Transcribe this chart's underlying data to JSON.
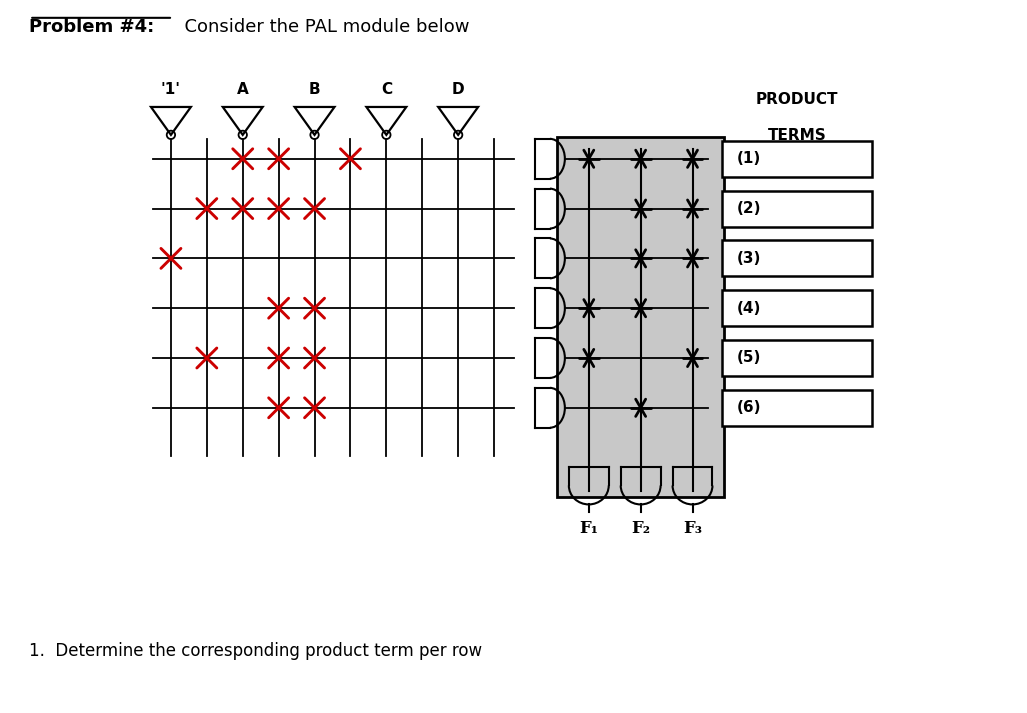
{
  "bg_color": "#ffffff",
  "title_problem": "Problem #4:",
  "title_rest": "  Consider the PAL module below",
  "subtitle": "1.  Determine the corresponding product term per row",
  "input_labels": [
    "'1'",
    "A",
    "B",
    "C",
    "D"
  ],
  "output_labels": [
    "F₁",
    "F₂",
    "F₃"
  ],
  "row_labels": [
    "(1)",
    "(2)",
    "(3)",
    "(4)",
    "(5)",
    "(6)"
  ],
  "num_rows": 6,
  "num_input_cols": 10,
  "num_output_cols": 3,
  "grid_color": "#000000",
  "cross_color": "#cc0000",
  "or_bg_color": "#c8c8c8",
  "input_crosses": [
    [
      2,
      3,
      5
    ],
    [
      1,
      2,
      3,
      4
    ],
    [
      0
    ],
    [
      3,
      4
    ],
    [
      1,
      3,
      4
    ],
    [
      3,
      4
    ]
  ],
  "output_crosses": [
    [
      0,
      1,
      2
    ],
    [
      1,
      2
    ],
    [
      1,
      2
    ],
    [
      0,
      1
    ],
    [
      0,
      2
    ],
    [
      1
    ]
  ]
}
